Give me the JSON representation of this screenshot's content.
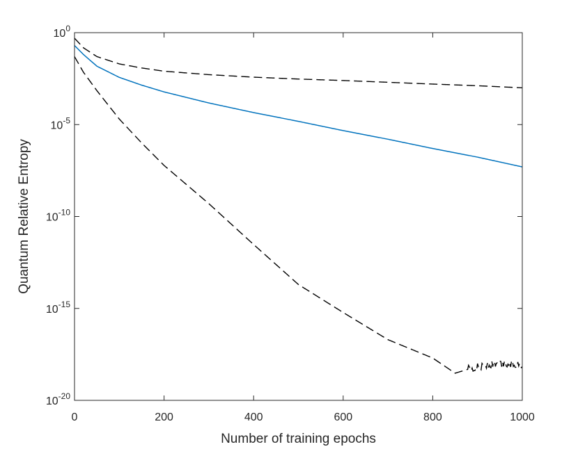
{
  "chart_data": {
    "type": "line",
    "title": "",
    "xlabel": "Number of training epochs",
    "ylabel": "Quantum Relative Entropy",
    "xlim": [
      0,
      1000
    ],
    "ylim": [
      1e-20,
      1
    ],
    "yscale": "log",
    "grid": false,
    "box": true,
    "legend": "none",
    "x_ticks": [
      "0",
      "200",
      "400",
      "600",
      "800",
      "1000"
    ],
    "y_ticks": [
      {
        "base": "10",
        "exp": "0"
      },
      {
        "base": "10",
        "exp": "-5"
      },
      {
        "base": "10",
        "exp": "-10"
      },
      {
        "base": "10",
        "exp": "-15"
      },
      {
        "base": "10",
        "exp": "-20"
      }
    ],
    "series": [
      {
        "color": "#0072bd",
        "style": "solid",
        "x": [
          0,
          20,
          50,
          100,
          150,
          200,
          300,
          400,
          500,
          600,
          700,
          800,
          900,
          1000
        ],
        "y": [
          0.2,
          0.065,
          0.015,
          0.0037,
          0.0014,
          0.0006,
          0.00015,
          4.5e-05,
          1.5e-05,
          4.7e-06,
          1.6e-06,
          5e-07,
          1.7e-07,
          5e-08
        ]
      },
      {
        "color": "#000000",
        "style": "dashed",
        "x": [
          0,
          20,
          50,
          100,
          150,
          200,
          300,
          400,
          500,
          600,
          700,
          800,
          900,
          1000
        ],
        "y": [
          0.5,
          0.15,
          0.05,
          0.02,
          0.012,
          0.008,
          0.0052,
          0.0038,
          0.003,
          0.0025,
          0.002,
          0.0016,
          0.0013,
          0.001
        ]
      },
      {
        "color": "#000000",
        "style": "dashed",
        "noise_from_x": 880,
        "x": [
          0,
          20,
          50,
          100,
          150,
          200,
          300,
          400,
          500,
          600,
          700,
          800,
          850,
          880,
          900,
          950,
          1000
        ],
        "y": [
          0.05,
          0.007,
          0.0007,
          2e-05,
          1e-06,
          6e-08,
          5e-10,
          3e-12,
          2e-14,
          6e-16,
          2e-17,
          2e-18,
          3e-19,
          5e-19,
          7e-19,
          1e-18,
          1e-18
        ]
      }
    ]
  }
}
